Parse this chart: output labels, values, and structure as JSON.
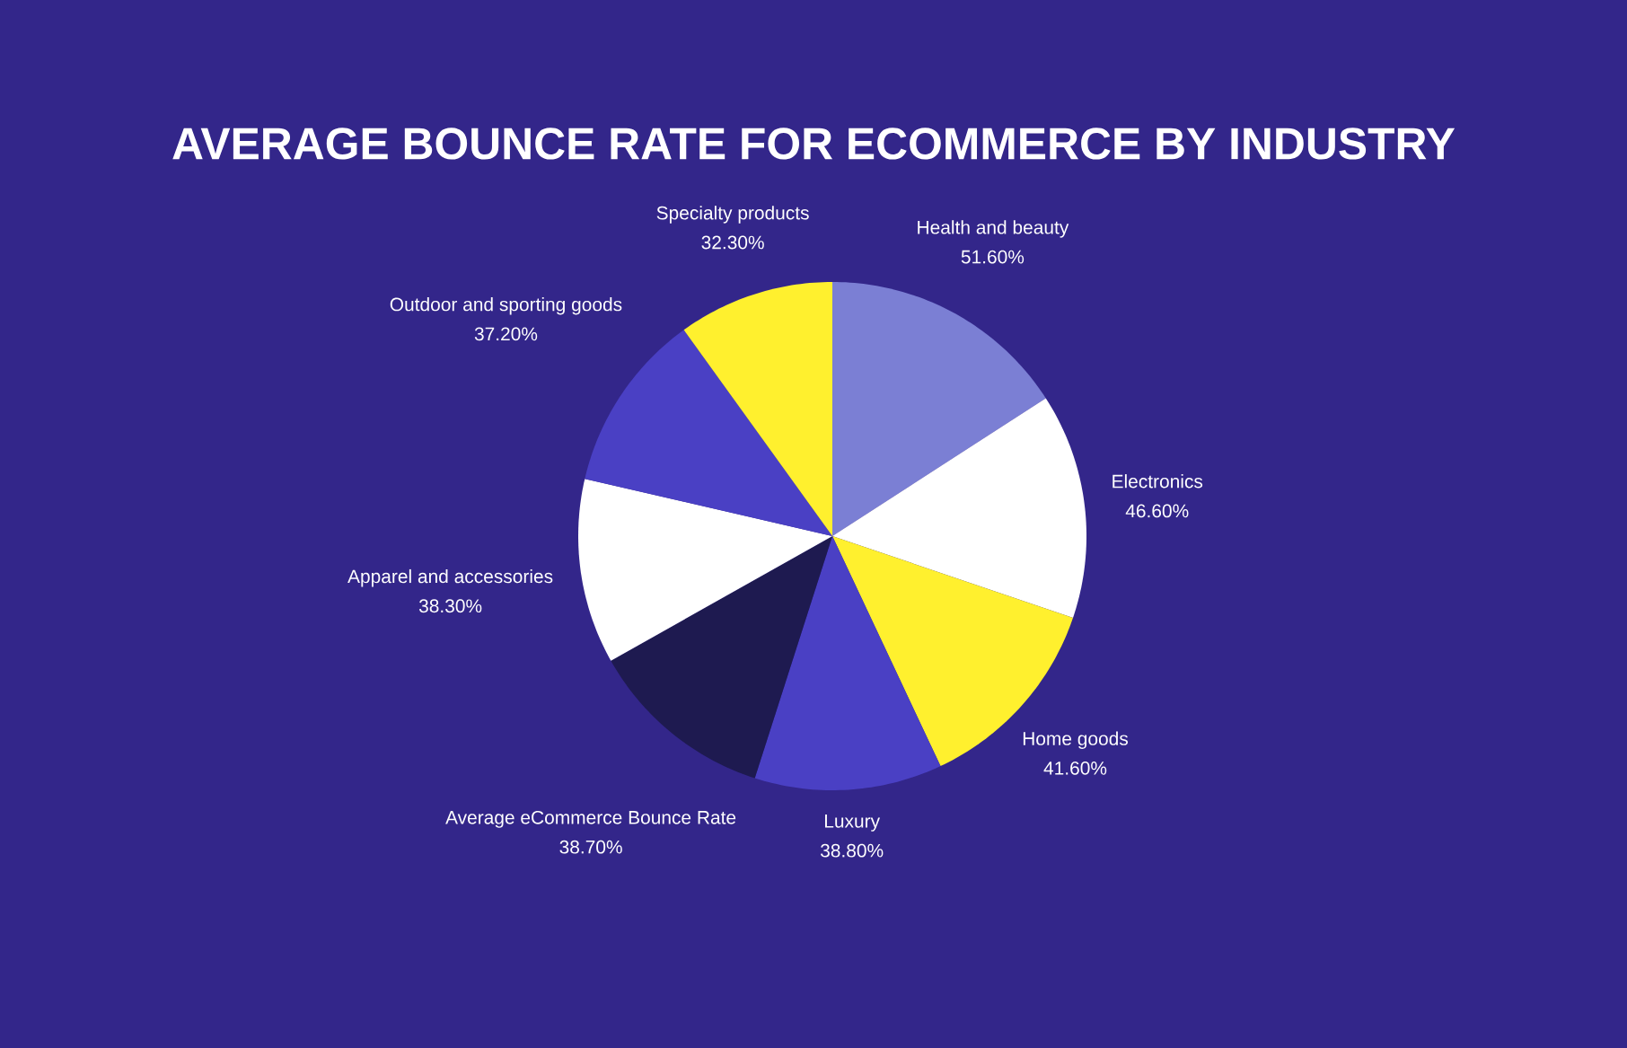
{
  "chart_data": {
    "type": "pie",
    "title": "AVERAGE BOUNCE RATE FOR ECOMMERCE BY INDUSTRY",
    "categories": [
      "Health and beauty",
      "Electronics",
      "Home goods",
      "Luxury",
      "Average eCommerce Bounce Rate",
      "Apparel and accessories",
      "Outdoor and sporting goods",
      "Specialty products"
    ],
    "values": [
      51.6,
      46.6,
      41.6,
      38.8,
      38.7,
      38.3,
      37.2,
      32.3
    ],
    "value_labels": [
      "51.60%",
      "46.60%",
      "41.60%",
      "38.80%",
      "38.70%",
      "38.30%",
      "37.20%",
      "32.30%"
    ],
    "colors": [
      "#7b7fd4",
      "#ffffff",
      "#fff02e",
      "#4a40c4",
      "#1e1a50",
      "#ffffff",
      "#4a40c4",
      "#fff02e"
    ]
  }
}
